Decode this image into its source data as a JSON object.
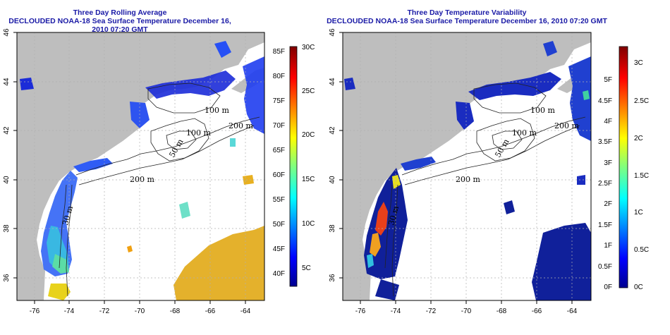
{
  "left": {
    "title": "Three Day Rolling Average",
    "subtitle": "DECLOUDED NOAA-18 Sea Surface Temperature December 16, 2010 07:20 GMT",
    "colorbar_f": [
      "85F",
      "80F",
      "75F",
      "70F",
      "65F",
      "60F",
      "55F",
      "50F",
      "45F",
      "40F"
    ],
    "colorbar_c": [
      "30C",
      "25C",
      "20C",
      "15C",
      "10C",
      "5C"
    ]
  },
  "right": {
    "title": "Three Day Temperature Variability",
    "subtitle": "DECLOUDED NOAA-18 Sea Surface Temperature December 16, 2010 07:20 GMT",
    "colorbar_f": [
      "5F",
      "4.5F",
      "4F",
      "3.5F",
      "3F",
      "2.5F",
      "2F",
      "1.5F",
      "1F",
      "0.5F",
      "0F"
    ],
    "colorbar_c": [
      "3C",
      "2.5C",
      "2C",
      "1.5C",
      "1C",
      "0.5C",
      "0C"
    ]
  },
  "axes": {
    "lon_ticks": [
      "-76",
      "-74",
      "-72",
      "-70",
      "-68",
      "-66",
      "-64"
    ],
    "lat_ticks": [
      "36",
      "38",
      "40",
      "42",
      "44",
      "46"
    ]
  },
  "contour_labels": [
    "100 m",
    "100 m",
    "200 m",
    "200 m",
    "200 m",
    "50 m",
    "30 m"
  ],
  "colors": {
    "land": "#bebebe",
    "title": "#1a1aa6",
    "grid": "#b0b0b0"
  }
}
